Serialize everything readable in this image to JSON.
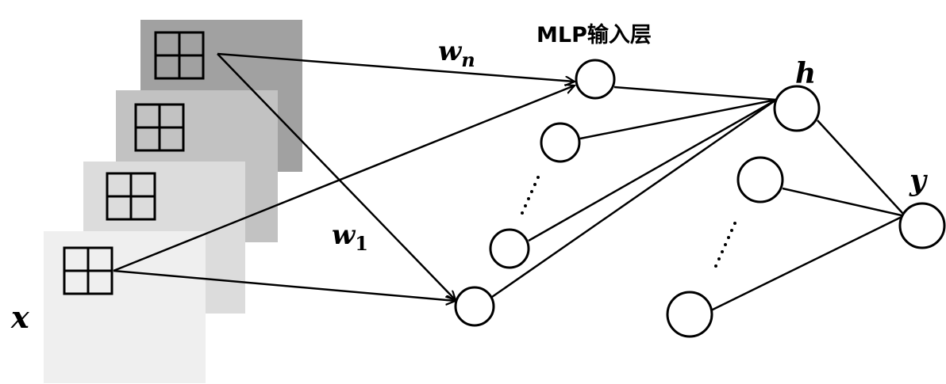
{
  "title": "MLP输入层",
  "labels": {
    "x": "x",
    "h": "h",
    "y": "y",
    "w_n_base": "w",
    "w_n_sub": "n",
    "w_1_base": "w",
    "w_1_sub": "1"
  },
  "colors": {
    "sheet_back": "#a1a1a1",
    "sheet_mid": "#c2c2c2",
    "sheet_mid2": "#dcdcdc",
    "sheet_front": "#efefef",
    "stroke": "#000000"
  }
}
